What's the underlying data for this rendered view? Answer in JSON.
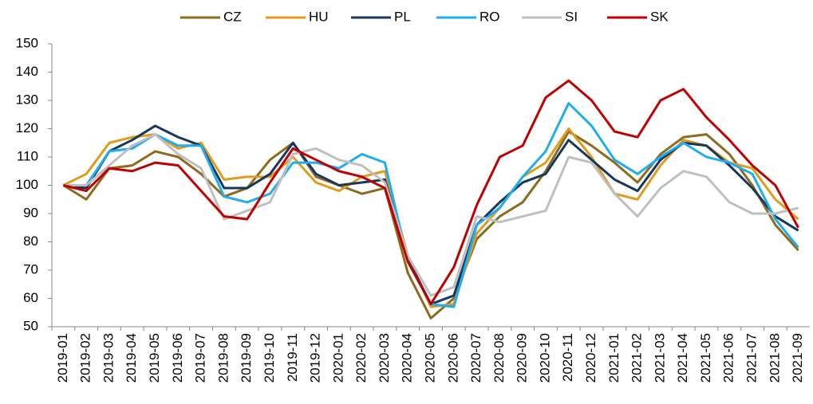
{
  "chart_data": {
    "type": "line",
    "categories": [
      "2019-01",
      "2019-02",
      "2019-03",
      "2019-04",
      "2019-05",
      "2019-06",
      "2019-07",
      "2019-08",
      "2019-09",
      "2019-10",
      "2019-11",
      "2019-12",
      "2020-01",
      "2020-02",
      "2020-03",
      "2020-04",
      "2020-05",
      "2020-06",
      "2020-07",
      "2020-08",
      "2020-09",
      "2020-10",
      "2020-11",
      "2020-12",
      "2021-01",
      "2021-02",
      "2021-03",
      "2021-04",
      "2021-05",
      "2021-06",
      "2021-07",
      "2021-08",
      "2021-09"
    ],
    "series": [
      {
        "name": "CZ",
        "color": "#8c6a1e",
        "values": [
          100,
          95,
          106,
          107,
          112,
          110,
          104,
          96,
          99,
          109,
          115,
          103,
          100,
          97,
          99,
          69,
          53,
          60,
          81,
          89,
          94,
          105,
          119,
          114,
          108,
          101,
          111,
          117,
          118,
          111,
          100,
          86,
          77
        ]
      },
      {
        "name": "HU",
        "color": "#e09a1f",
        "values": [
          100,
          104,
          115,
          117,
          118,
          113,
          115,
          102,
          103,
          103,
          110,
          101,
          98,
          103,
          105,
          75,
          57,
          58,
          83,
          92,
          103,
          108,
          120,
          110,
          97,
          95,
          107,
          116,
          114,
          108,
          106,
          95,
          88
        ]
      },
      {
        "name": "PL",
        "color": "#17375e",
        "values": [
          100,
          99,
          112,
          116,
          121,
          117,
          114,
          99,
          99,
          104,
          115,
          104,
          100,
          101,
          102,
          74,
          58,
          61,
          86,
          94,
          101,
          104,
          116,
          109,
          102,
          98,
          109,
          115,
          114,
          107,
          99,
          89,
          84
        ]
      },
      {
        "name": "RO",
        "color": "#1fadf0",
        "values": [
          100,
          100,
          112,
          113,
          118,
          114,
          114,
          96,
          94,
          97,
          108,
          108,
          106,
          111,
          108,
          73,
          58,
          57,
          86,
          92,
          103,
          112,
          129,
          121,
          109,
          104,
          110,
          115,
          110,
          108,
          104,
          88,
          78
        ]
      },
      {
        "name": "SI",
        "color": "#bfbfbf",
        "values": [
          100,
          100,
          107,
          114,
          118,
          111,
          106,
          88,
          91,
          94,
          111,
          113,
          109,
          107,
          101,
          75,
          61,
          64,
          89,
          87,
          89,
          91,
          110,
          108,
          97,
          89,
          99,
          105,
          103,
          94,
          90,
          90,
          92
        ]
      },
      {
        "name": "SK",
        "color": "#c00000",
        "values": [
          100,
          98,
          106,
          105,
          108,
          107,
          98,
          89,
          88,
          101,
          113,
          109,
          105,
          103,
          99,
          73,
          58,
          71,
          93,
          110,
          114,
          131,
          137,
          130,
          119,
          117,
          130,
          134,
          124,
          116,
          107,
          100,
          85
        ]
      }
    ],
    "ylim": [
      50,
      150
    ],
    "yticks": [
      50,
      60,
      70,
      80,
      90,
      100,
      110,
      120,
      130,
      140,
      150
    ],
    "grid": false,
    "legend": "top"
  }
}
